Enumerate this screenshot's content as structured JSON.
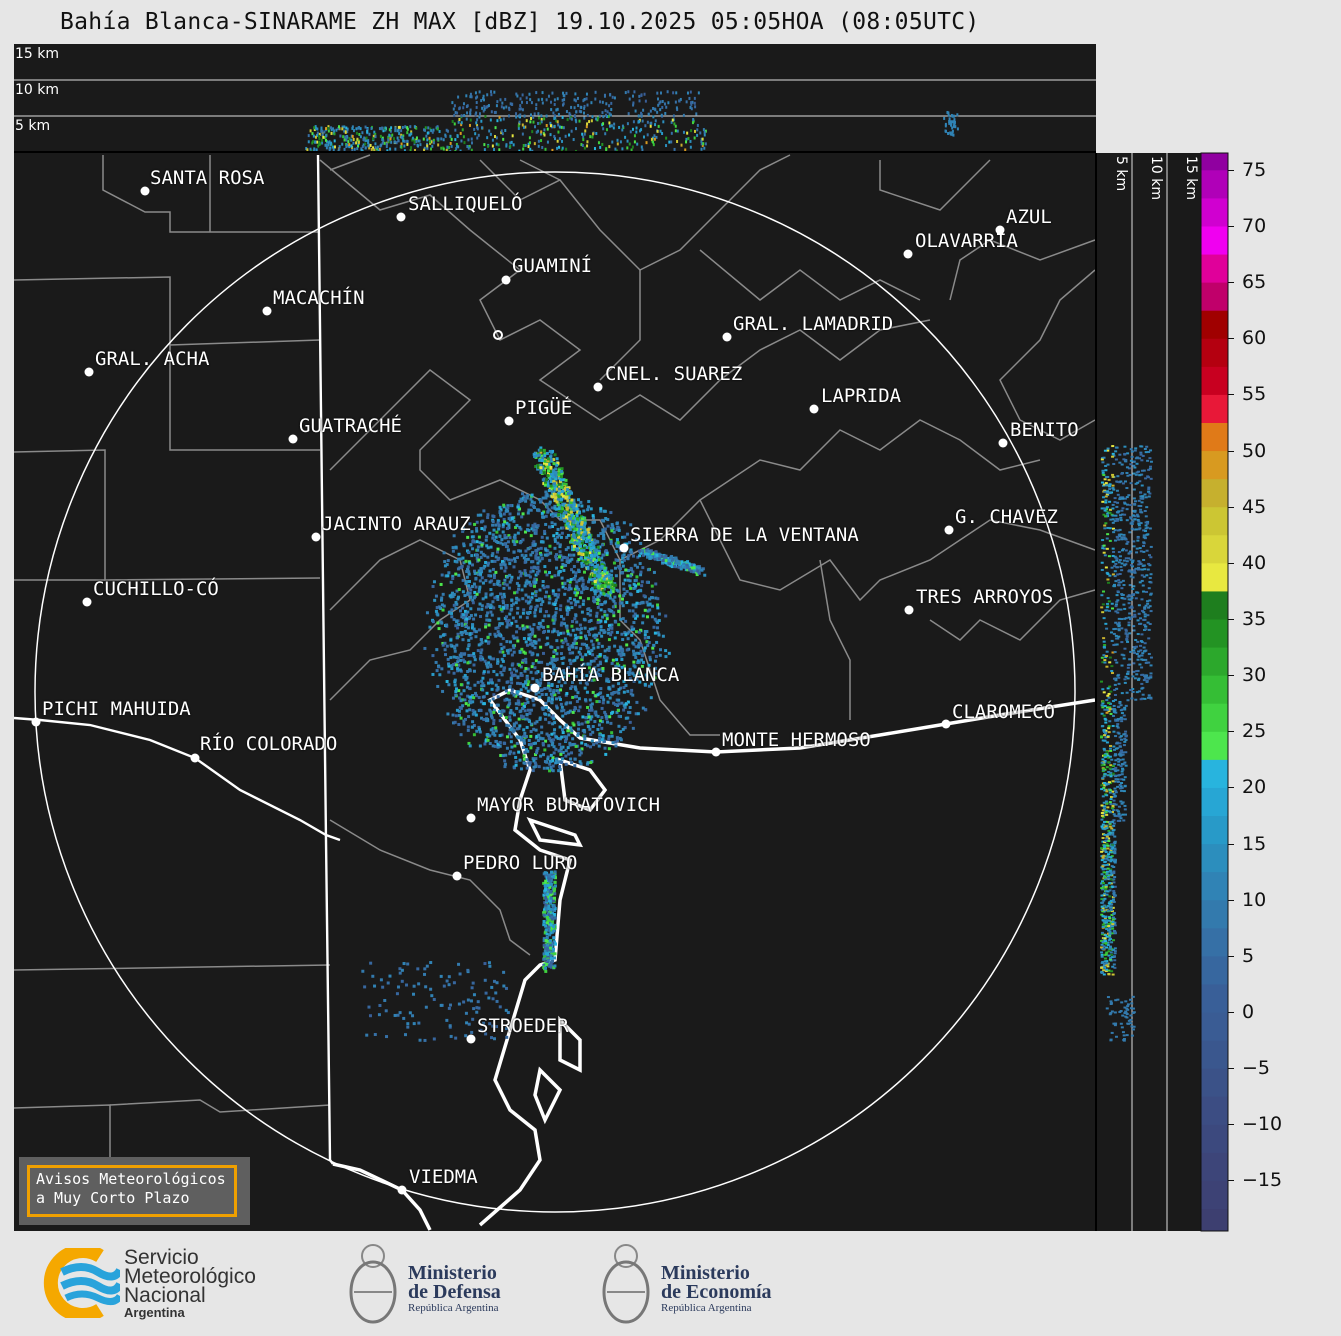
{
  "title": "Bahía Blanca-SINARAME ZH MAX [dBZ] 19.10.2025 05:05HOA (08:05UTC)",
  "top_profile": {
    "labels": [
      "15 km",
      "10 km",
      "5 km"
    ]
  },
  "side_profile": {
    "labels": [
      "5 km",
      "10 km",
      "15 km"
    ]
  },
  "colorbar": {
    "range": [
      -19.5,
      76.5
    ],
    "ticks": [
      "75",
      "70",
      "65",
      "60",
      "55",
      "50",
      "45",
      "40",
      "35",
      "30",
      "25",
      "20",
      "15",
      "10",
      "5",
      "0",
      "−5",
      "−10",
      "−15"
    ],
    "tick_values": [
      75,
      70,
      65,
      60,
      55,
      50,
      45,
      40,
      35,
      30,
      25,
      20,
      15,
      10,
      5,
      0,
      -5,
      -10,
      -15
    ],
    "bin_start": -20,
    "bin_width": 2.5,
    "colors": [
      "#3d3f70",
      "#3d4275",
      "#3d4579",
      "#3c497e",
      "#3c4d83",
      "#3b5288",
      "#3a578e",
      "#3a5c94",
      "#395f98",
      "#37679f",
      "#3670a6",
      "#337aad",
      "#3083b5",
      "#2c8ebd",
      "#289ac8",
      "#27a6d4",
      "#28b4de",
      "#4de64d",
      "#40d240",
      "#35be35",
      "#2ca82c",
      "#239323",
      "#1e7e1e",
      "#e8e840",
      "#d9d63a",
      "#ccc633",
      "#c6b02e",
      "#d89a20",
      "#e07a18",
      "#e81838",
      "#c80020",
      "#b40010",
      "#a00000",
      "#c0006a",
      "#e0009a",
      "#f000f0",
      "#d000d0",
      "#b000b8",
      "#9000a0",
      "#ffffff",
      "#d8f4ea",
      "#c0eedc",
      "#aee8d2",
      "#9ce2c8",
      "#8cdcc0",
      "#80d8ba",
      "#7ad6b6"
    ]
  },
  "cities": [
    "SANTA ROSA",
    "SALLIQUELÓ",
    "GUAMINÍ",
    "MACACHÍN",
    "GRAL. ACHA",
    "GUATRACHÉ",
    "PIGÜÉ",
    "CNEL. SUAREZ",
    "GRAL. LAMADRID",
    "LAPRIDA",
    "OLAVARRÍA",
    "AZUL",
    "BENITO",
    "G. CHAVEZ",
    "SIERRA DE LA VENTANA",
    "TRES ARROYOS",
    "JACINTO ARAUZ",
    "CUCHILLO-CÓ",
    "BAHÍA BLANCA",
    "PICHI MAHUIDA",
    "RÍO COLORADO",
    "MONTE HERMOSO",
    "CLAROMECÓ",
    "MAYOR BURATOVICH",
    "PEDRO LURO",
    "STROEDER",
    "VIEDMA"
  ],
  "avisos": {
    "line1": "Avisos Meteorológicos",
    "line2": "a Muy Corto Plazo"
  },
  "logos": {
    "smn": {
      "lines": [
        "Servicio",
        "Meteorológico",
        "Nacional"
      ],
      "sub": "Argentina",
      "colors": [
        "#f5a800",
        "#29a3db"
      ]
    },
    "defensa": {
      "line1": "Ministerio",
      "line2": "de Defensa",
      "sub": "República Argentina"
    },
    "economia": {
      "line1": "Ministerio",
      "line2": "de Economía",
      "sub": "República Argentina"
    }
  }
}
